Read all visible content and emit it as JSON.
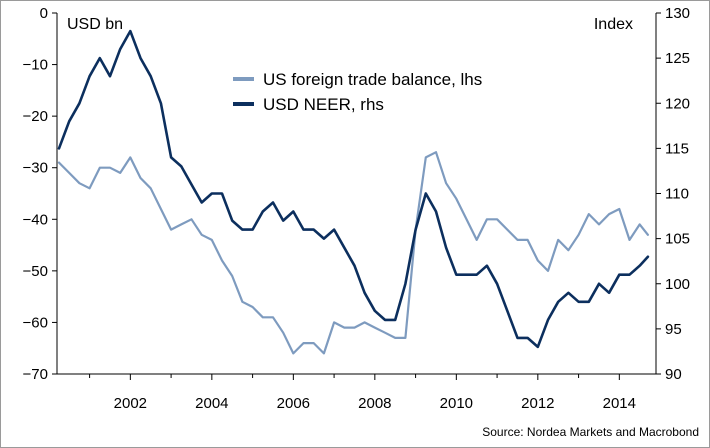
{
  "chart_data": {
    "type": "line",
    "source": "Source: Nordea Markets and Macrobond",
    "left_axis": {
      "unit_label": "USD bn",
      "range": [
        -70,
        0
      ],
      "ticks": [
        0,
        -10,
        -20,
        -30,
        -40,
        -50,
        -60,
        -70
      ],
      "tick_labels": [
        "0",
        "−10",
        "−20",
        "−30",
        "−40",
        "−50",
        "−60",
        "−70"
      ]
    },
    "right_axis": {
      "unit_label": "Index",
      "range": [
        90,
        130
      ],
      "ticks": [
        90,
        95,
        100,
        105,
        110,
        115,
        120,
        125,
        130
      ],
      "tick_labels": [
        "90",
        "95",
        "100",
        "105",
        "110",
        "115",
        "120",
        "125",
        "130"
      ]
    },
    "x_axis": {
      "range": [
        2000.2,
        2014.9
      ],
      "ticks": [
        2002,
        2004,
        2006,
        2008,
        2010,
        2012,
        2014
      ],
      "tick_labels": [
        "2002",
        "2004",
        "2006",
        "2008",
        "2010",
        "2012",
        "2014"
      ],
      "minor_ticks": [
        2001,
        2003,
        2005,
        2007,
        2009,
        2011,
        2013
      ]
    },
    "legend": {
      "placement": "top-center"
    },
    "series": [
      {
        "name": "US foreign trade balance, lhs",
        "axis": "left",
        "color": "#7e9bbf",
        "x": [
          2000.25,
          2000.5,
          2000.75,
          2001.0,
          2001.25,
          2001.5,
          2001.75,
          2002.0,
          2002.25,
          2002.5,
          2002.75,
          2003.0,
          2003.25,
          2003.5,
          2003.75,
          2004.0,
          2004.25,
          2004.5,
          2004.75,
          2005.0,
          2005.25,
          2005.5,
          2005.75,
          2006.0,
          2006.25,
          2006.5,
          2006.75,
          2007.0,
          2007.25,
          2007.5,
          2007.75,
          2008.0,
          2008.25,
          2008.5,
          2008.75,
          2009.0,
          2009.25,
          2009.5,
          2009.75,
          2010.0,
          2010.25,
          2010.5,
          2010.75,
          2011.0,
          2011.25,
          2011.5,
          2011.75,
          2012.0,
          2012.25,
          2012.5,
          2012.75,
          2013.0,
          2013.25,
          2013.5,
          2013.75,
          2014.0,
          2014.25,
          2014.5,
          2014.7
        ],
        "values": [
          -29,
          -31,
          -33,
          -34,
          -30,
          -30,
          -31,
          -28,
          -32,
          -34,
          -38,
          -42,
          -41,
          -40,
          -43,
          -44,
          -48,
          -51,
          -56,
          -57,
          -59,
          -59,
          -62,
          -66,
          -64,
          -64,
          -66,
          -60,
          -61,
          -61,
          -60,
          -61,
          -62,
          -63,
          -63,
          -42,
          -28,
          -27,
          -33,
          -36,
          -40,
          -44,
          -40,
          -40,
          -42,
          -44,
          -44,
          -48,
          -50,
          -44,
          -46,
          -43,
          -39,
          -41,
          -39,
          -38,
          -44,
          -41,
          -43
        ]
      },
      {
        "name": "USD NEER, rhs",
        "axis": "right",
        "color": "#0c2f5e",
        "x": [
          2000.25,
          2000.5,
          2000.75,
          2001.0,
          2001.25,
          2001.5,
          2001.75,
          2002.0,
          2002.25,
          2002.5,
          2002.75,
          2003.0,
          2003.25,
          2003.5,
          2003.75,
          2004.0,
          2004.25,
          2004.5,
          2004.75,
          2005.0,
          2005.25,
          2005.5,
          2005.75,
          2006.0,
          2006.25,
          2006.5,
          2006.75,
          2007.0,
          2007.25,
          2007.5,
          2007.75,
          2008.0,
          2008.25,
          2008.5,
          2008.75,
          2009.0,
          2009.25,
          2009.5,
          2009.75,
          2010.0,
          2010.25,
          2010.5,
          2010.75,
          2011.0,
          2011.25,
          2011.5,
          2011.75,
          2012.0,
          2012.25,
          2012.5,
          2012.75,
          2013.0,
          2013.25,
          2013.5,
          2013.75,
          2014.0,
          2014.25,
          2014.5,
          2014.7
        ],
        "values": [
          115,
          118,
          120,
          123,
          125,
          123,
          126,
          128,
          125,
          123,
          120,
          114,
          113,
          111,
          109,
          110,
          110,
          107,
          106,
          106,
          108,
          109,
          107,
          108,
          106,
          106,
          105,
          106,
          104,
          102,
          99,
          97,
          96,
          96,
          100,
          106,
          110,
          108,
          104,
          101,
          101,
          101,
          102,
          100,
          97,
          94,
          94,
          93,
          96,
          98,
          99,
          98,
          98,
          100,
          99,
          101,
          101,
          102,
          103
        ]
      }
    ]
  }
}
